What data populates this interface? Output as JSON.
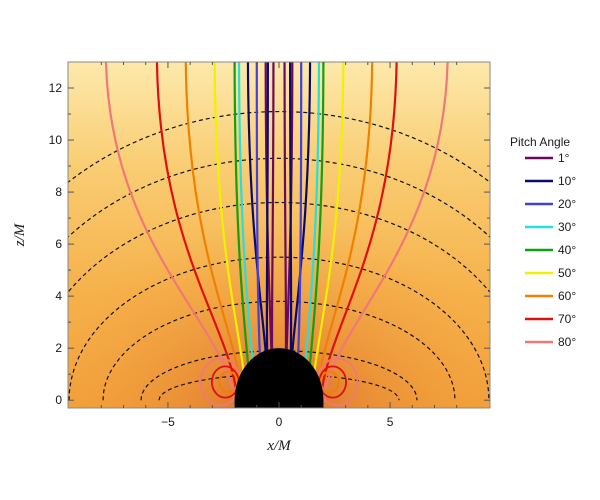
{
  "chart_data": {
    "type": "line",
    "xlabel": "x/M",
    "ylabel": "z/M",
    "xlim": [
      -9.5,
      9.5
    ],
    "ylim": [
      -0.3,
      13.0
    ],
    "x_ticks": [
      -5,
      0,
      5
    ],
    "x_tick_labels": [
      "−5",
      "0",
      "5"
    ],
    "y_ticks": [
      0,
      2,
      4,
      6,
      8,
      10,
      12
    ],
    "y_tick_labels": [
      "0",
      "2",
      "4",
      "6",
      "8",
      "10",
      "12"
    ],
    "black_hole_radius": 2.0,
    "background": "orange gradient, darkest near the black hole, fading to pale yellow at the top",
    "dashed_contour_levels_on_axis": [
      1.0,
      1.9,
      3.8,
      5.5,
      7.6,
      9.3,
      11.1
    ],
    "legend": {
      "title": "Pitch Angle",
      "placement": "right",
      "entries": [
        {
          "label": "1°",
          "color": "#6a0a5e"
        },
        {
          "label": "10°",
          "color": "#0a0a6e"
        },
        {
          "label": "20°",
          "color": "#4040e0"
        },
        {
          "label": "30°",
          "color": "#20e0e0"
        },
        {
          "label": "40°",
          "color": "#10a010"
        },
        {
          "label": "50°",
          "color": "#f0f000"
        },
        {
          "label": "60°",
          "color": "#f08000"
        },
        {
          "label": "70°",
          "color": "#e01010"
        },
        {
          "label": "80°",
          "color": "#f07878"
        }
      ]
    },
    "series": [
      {
        "name": "1°",
        "color": "#6a0a5e",
        "x_at_top": [
          -0.6,
          -0.25,
          0.25,
          0.6
        ],
        "x_at_base": 0.3
      },
      {
        "name": "10°",
        "color": "#0a0a6e",
        "x_at_top": [
          -1.4,
          -0.5,
          0.5,
          1.4
        ],
        "x_at_base": 0.5
      },
      {
        "name": "20°",
        "color": "#4040e0",
        "x_at_top": [
          -1.0,
          1.0
        ],
        "x_at_base": 0.8
      },
      {
        "name": "30°",
        "color": "#20e0e0",
        "x_at_top": [
          -1.8,
          1.8
        ],
        "x_at_base": 1.1
      },
      {
        "name": "40°",
        "color": "#10a010",
        "x_at_top": [
          -2.0,
          2.0
        ],
        "x_at_base": 1.3
      },
      {
        "name": "50°",
        "color": "#f0f000",
        "x_at_top": [
          -2.9,
          2.9
        ],
        "x_at_base": 1.5
      },
      {
        "name": "60°",
        "color": "#f08000",
        "x_at_top": [
          -4.2,
          4.2
        ],
        "x_at_base": 1.7
      },
      {
        "name": "70°",
        "color": "#e01010",
        "x_at_top": [
          -5.5,
          5.3
        ],
        "x_at_base": 1.9
      },
      {
        "name": "80°",
        "color": "#f07878",
        "x_at_top": [
          -7.8,
          7.6
        ],
        "x_at_base": 2.0
      }
    ]
  }
}
